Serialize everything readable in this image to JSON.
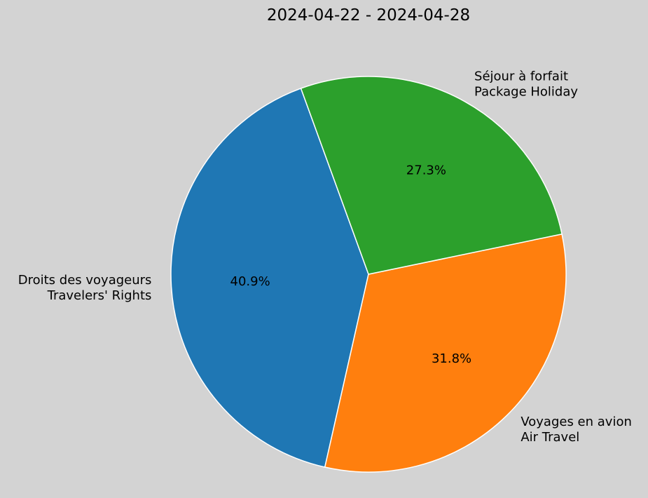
{
  "chart_data": {
    "type": "pie",
    "title": "2024-04-22 - 2024-04-28",
    "slices": [
      {
        "label_fr": "Droits des voyageurs",
        "label_en": "Travelers' Rights",
        "value": 40.9,
        "pct_label": "40.9%",
        "color": "#1f77b4"
      },
      {
        "label_fr": "Voyages en avion",
        "label_en": "Air Travel",
        "value": 31.8,
        "pct_label": "31.8%",
        "color": "#ff7f0e"
      },
      {
        "label_fr": "Séjour à forfait",
        "label_en": "Package Holiday",
        "value": 27.3,
        "pct_label": "27.3%",
        "color": "#2ca02c"
      }
    ],
    "start_angle_deg": 110,
    "direction": "counterclockwise",
    "wedge_edge_color": "#ffffff",
    "background": "#d3d3d3"
  }
}
